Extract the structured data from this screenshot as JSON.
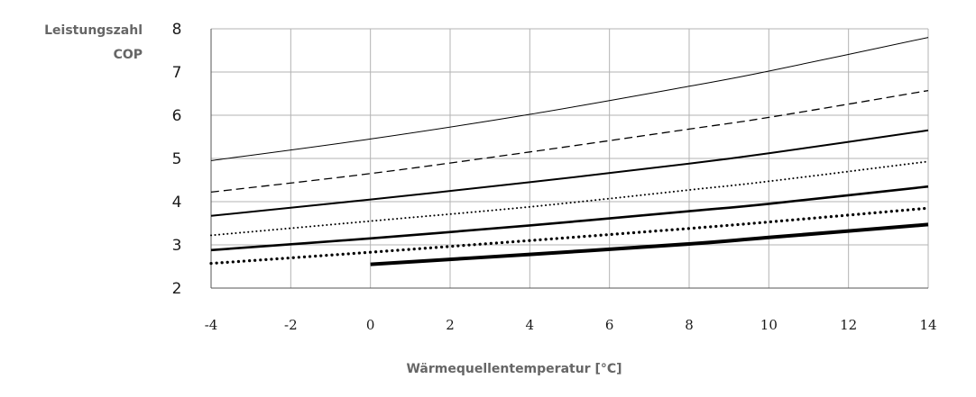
{
  "chart_data": {
    "type": "line",
    "ylabel_lines": [
      "Leistungszahl",
      "COP"
    ],
    "xlabel": "Wärmequellentemperatur [°C]",
    "xlim": [
      -4,
      14
    ],
    "ylim": [
      2,
      8
    ],
    "x_ticks": [
      -4,
      -2,
      0,
      2,
      4,
      6,
      8,
      10,
      12,
      14
    ],
    "y_ticks": [
      2,
      3,
      4,
      5,
      6,
      7,
      8
    ],
    "grid": true,
    "series": [
      {
        "style": "solid-thin",
        "x": [
          -4,
          0,
          4,
          8,
          10,
          14
        ],
        "y": [
          4.95,
          5.45,
          6.02,
          6.67,
          7.02,
          7.8
        ]
      },
      {
        "style": "dashed",
        "x": [
          -4,
          0,
          4,
          8,
          10,
          14
        ],
        "y": [
          4.22,
          4.65,
          5.15,
          5.68,
          5.95,
          6.57
        ]
      },
      {
        "style": "solid-medium",
        "x": [
          -4,
          0,
          4,
          8,
          10,
          14
        ],
        "y": [
          3.67,
          4.05,
          4.45,
          4.88,
          5.12,
          5.65
        ]
      },
      {
        "style": "dotted-thin",
        "x": [
          -4,
          0,
          4,
          8,
          10,
          14
        ],
        "y": [
          3.22,
          3.55,
          3.88,
          4.27,
          4.47,
          4.93
        ]
      },
      {
        "style": "solid-thick",
        "x": [
          -4,
          0,
          4,
          8,
          10,
          14
        ],
        "y": [
          2.88,
          3.15,
          3.45,
          3.78,
          3.95,
          4.35
        ]
      },
      {
        "style": "dotted-thick",
        "x": [
          -4,
          0,
          4,
          8,
          10,
          14
        ],
        "y": [
          2.57,
          2.83,
          3.1,
          3.38,
          3.53,
          3.85
        ]
      },
      {
        "style": "solid-heavy",
        "x": [
          0,
          4,
          8,
          10,
          14
        ],
        "y": [
          2.55,
          2.78,
          3.02,
          3.17,
          3.47
        ]
      }
    ]
  }
}
